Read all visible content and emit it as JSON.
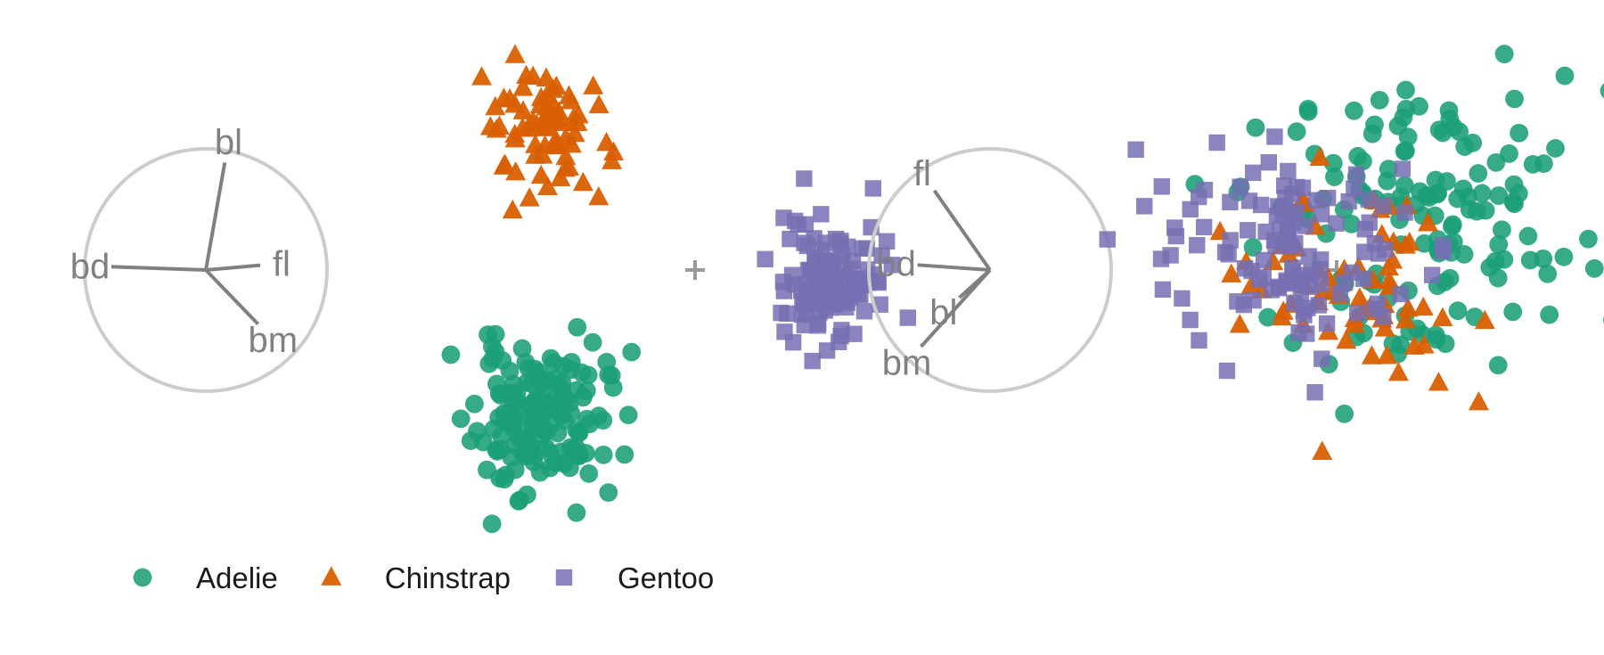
{
  "chart_data": [
    {
      "type": "scatter",
      "panel": "left",
      "axes": [
        {
          "name": "bl",
          "direction_deg": 80,
          "length": 0.9
        },
        {
          "name": "fl",
          "direction_deg": 5,
          "length": 0.45
        },
        {
          "name": "bd",
          "direction_deg": 178,
          "length": 0.78
        },
        {
          "name": "bm",
          "direction_deg": -46,
          "length": 0.62
        }
      ],
      "series": [
        {
          "name": "Adelie",
          "shape": "circle",
          "color": "#1b9e77",
          "center": [
            -0.34,
            -0.32
          ],
          "spread": [
            0.07,
            0.08
          ],
          "n": 146,
          "seed": 11
        },
        {
          "name": "Chinstrap",
          "shape": "triangle",
          "color": "#d95f02",
          "center": [
            -0.33,
            0.3
          ],
          "spread": [
            0.07,
            0.08
          ],
          "n": 68,
          "seed": 23
        },
        {
          "name": "Gentoo",
          "shape": "square",
          "color": "#7570b3",
          "center": [
            0.3,
            -0.02
          ],
          "spread": [
            0.055,
            0.07
          ],
          "n": 119,
          "seed": 37
        }
      ]
    },
    {
      "type": "scatter",
      "panel": "right",
      "axes": [
        {
          "name": "fl",
          "direction_deg": 125,
          "length": 0.8
        },
        {
          "name": "bd",
          "direction_deg": 176,
          "length": 0.6
        },
        {
          "name": "bl",
          "direction_deg": -138,
          "length": 0.34
        },
        {
          "name": "bm",
          "direction_deg": -132,
          "length": 0.85
        }
      ],
      "series": [
        {
          "name": "Adelie",
          "shape": "circle",
          "color": "#1b9e77",
          "center": [
            0.18,
            0.12
          ],
          "spread": [
            0.18,
            0.15
          ],
          "n": 146,
          "seed": 53
        },
        {
          "name": "Chinstrap",
          "shape": "triangle",
          "color": "#d95f02",
          "center": [
            0.02,
            -0.03
          ],
          "spread": [
            0.13,
            0.12
          ],
          "n": 68,
          "seed": 71
        },
        {
          "name": "Gentoo",
          "shape": "square",
          "color": "#7570b3",
          "center": [
            -0.12,
            0.05
          ],
          "spread": [
            0.14,
            0.1
          ],
          "n": 119,
          "seed": 89
        }
      ]
    }
  ],
  "legend": {
    "placement": "bottom-left",
    "items": [
      {
        "label": "Adelie",
        "shape": "circle",
        "color": "#1b9e77"
      },
      {
        "label": "Chinstrap",
        "shape": "triangle",
        "color": "#d95f02"
      },
      {
        "label": "Gentoo",
        "shape": "square",
        "color": "#7570b3"
      }
    ]
  },
  "colors": {
    "axis_line": "#808080",
    "circle": "#cccccc",
    "center_marker": "#999999"
  }
}
